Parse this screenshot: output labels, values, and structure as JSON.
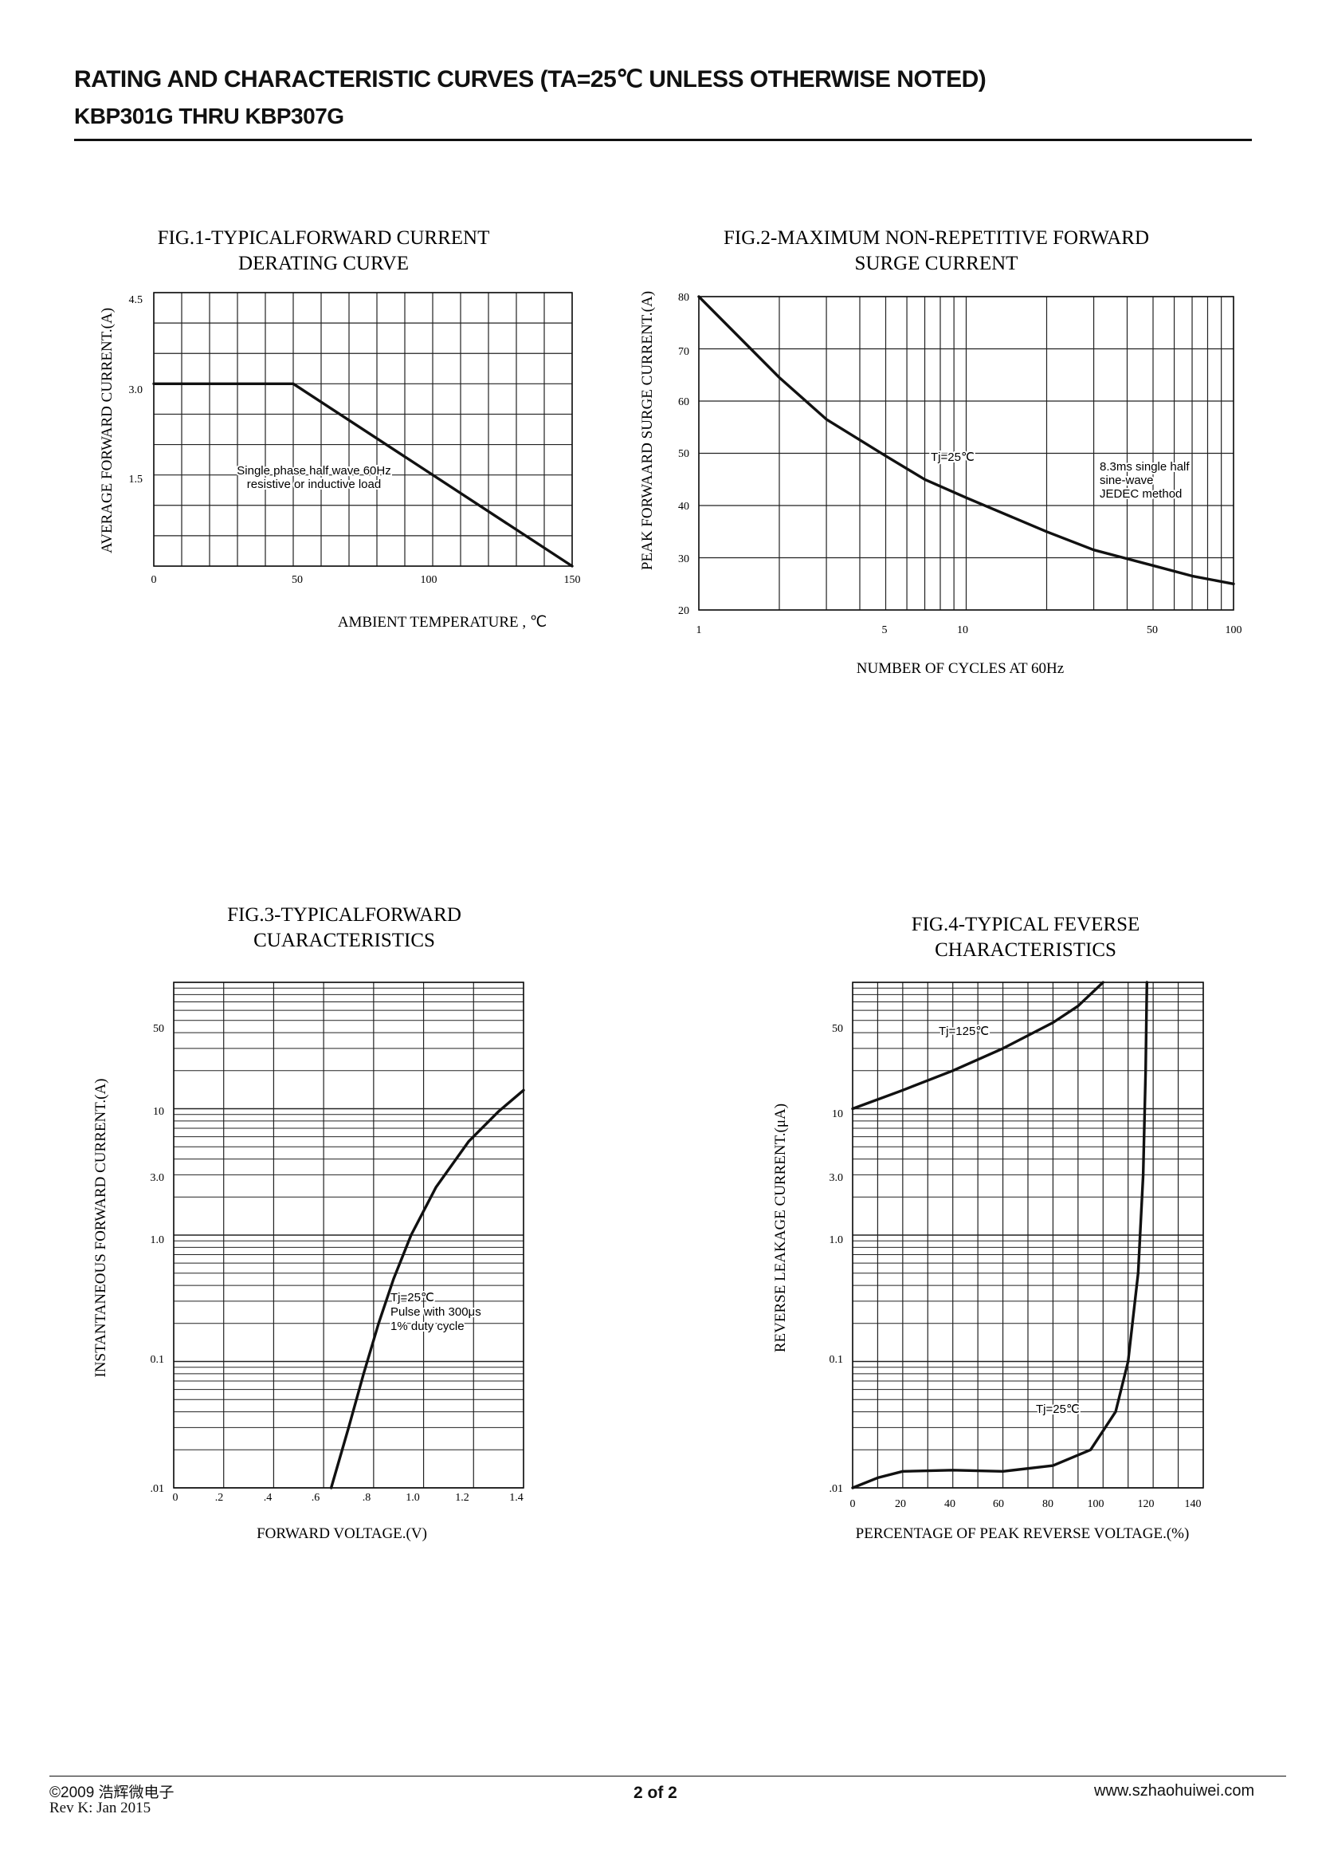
{
  "header": {
    "title": "RATING AND CHARACTERISTIC CURVES (TA=25℃ UNLESS OTHERWISE NOTED)",
    "subtitle": "KBP301G THRU KBP307G"
  },
  "footer": {
    "copyright": "©2009 浩辉微电子",
    "revision": "Rev K:  Jan 2015",
    "page": "2 of 2",
    "website": "www.szhaohuiwei.com"
  },
  "chart_data": [
    {
      "type": "line",
      "title": [
        "FIG.1-TYPICALFORWARD CURRENT",
        "DERATING CURVE"
      ],
      "xlabel": "AMBIENT TEMPERATURE , ℃",
      "ylabel": "AVERAGE FORWARD CURRENT.(A)",
      "xlim": [
        0,
        150
      ],
      "ylim": [
        0,
        4.5
      ],
      "xticks": [
        "0",
        "50",
        "100",
        "150"
      ],
      "yticks": [
        "1.5",
        "3.0",
        "4.5"
      ],
      "grid": true,
      "series": [
        {
          "x": [
            0,
            50,
            150
          ],
          "y": [
            3.0,
            3.0,
            0
          ]
        }
      ],
      "annotations": [
        "Single phase half wave 60Hz",
        "resistive or inductive load"
      ]
    },
    {
      "type": "line",
      "title": [
        "FIG.2-MAXIMUM NON-REPETITIVE FORWARD",
        "SURGE CURRENT"
      ],
      "xlabel": "NUMBER OF CYCLES AT 60Hz",
      "ylabel": "PEAK FORWAARD  SURGE  CURRENT.(A)",
      "xscale": "log",
      "xlim": [
        1,
        100
      ],
      "ylim": [
        20,
        80
      ],
      "xticks": [
        "1",
        "5",
        "10",
        "50",
        "100"
      ],
      "yticks": [
        "20",
        "30",
        "40",
        "50",
        "60",
        "70",
        "80"
      ],
      "grid": true,
      "series": [
        {
          "x": [
            1,
            2,
            3,
            5,
            7,
            10,
            20,
            30,
            50,
            70,
            100
          ],
          "y": [
            80,
            64.5,
            56.5,
            49.5,
            45,
            41.5,
            35,
            31.5,
            28.5,
            26.5,
            25
          ]
        }
      ],
      "annotations": [
        "Tj=25℃",
        "8.3ms single half",
        "sine-wave",
        "JEDEC method"
      ]
    },
    {
      "type": "line",
      "title": [
        "FIG.3-TYPICALFORWARD",
        "CUARACTERISTICS"
      ],
      "xlabel": "FORWARD VOLTAGE.(V)",
      "ylabel": "INSTANTANEOUS FORWARD CURRENT.(A)",
      "yscale": "log",
      "xlim": [
        0,
        1.4
      ],
      "ylim": [
        0.01,
        100
      ],
      "xticks": [
        "0",
        ".2",
        ".4",
        ".6",
        ".8",
        "1.0",
        "1.2",
        "1.4"
      ],
      "yticks": [
        ".01",
        "0.1",
        "1.0",
        "3.0",
        "10",
        "50"
      ],
      "grid": true,
      "series": [
        {
          "x": [
            0.63,
            0.7,
            0.76,
            0.82,
            0.88,
            0.95,
            1.05,
            1.18,
            1.3,
            1.4
          ],
          "y": [
            0.01,
            0.03,
            0.08,
            0.2,
            0.45,
            1.0,
            2.4,
            5.5,
            9.5,
            14
          ]
        }
      ],
      "annotations": [
        "Tj=25℃",
        "Pulse with 300μs",
        "1% duty cycle"
      ]
    },
    {
      "type": "line",
      "title": [
        "FIG.4-TYPICAL FEVERSE",
        "CHARACTERISTICS"
      ],
      "xlabel": "PERCENTAGE OF PEAK REVERSE VOLTAGE.(%)",
      "ylabel": "REVERSE LEAKAGE CURRENT.(μA)",
      "yscale": "log",
      "xlim": [
        0,
        140
      ],
      "ylim": [
        0.01,
        100
      ],
      "xticks": [
        "0",
        "20",
        "40",
        "60",
        "80",
        "100",
        "120",
        "140"
      ],
      "yticks": [
        ".01",
        "0.1",
        "1.0",
        "3.0",
        "10",
        "50"
      ],
      "grid": true,
      "series": [
        {
          "name": "Tj=125℃",
          "x": [
            0,
            20,
            40,
            60,
            80,
            90,
            100
          ],
          "y": [
            10,
            14,
            20,
            30,
            48,
            65,
            100
          ]
        },
        {
          "name": "Tj=25℃",
          "x": [
            0,
            10,
            20,
            40,
            60,
            80,
            95,
            105,
            110,
            114,
            116,
            117,
            117.5
          ],
          "y": [
            0.01,
            0.012,
            0.0135,
            0.0138,
            0.0135,
            0.015,
            0.02,
            0.04,
            0.1,
            0.5,
            3,
            20,
            100
          ]
        }
      ],
      "annotations": [
        "Tj=125℃",
        "Tj=25℃"
      ]
    }
  ]
}
